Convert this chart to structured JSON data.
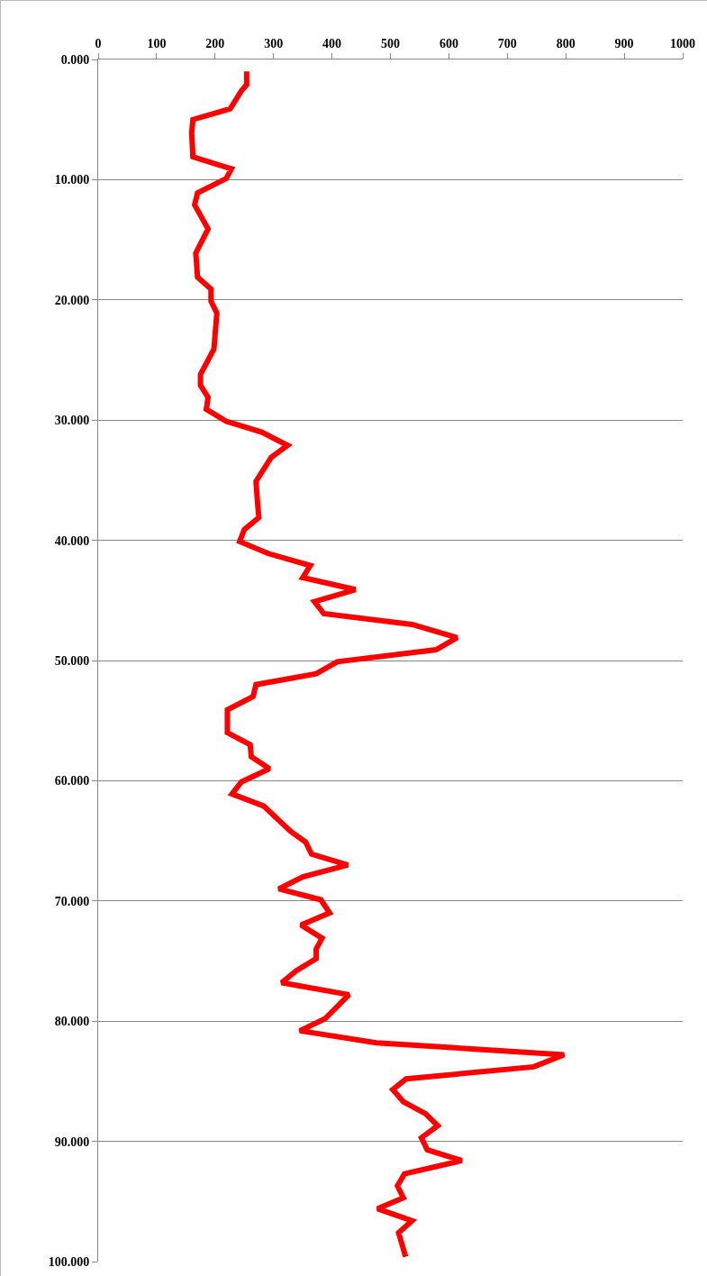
{
  "chart_data": {
    "type": "line",
    "color": "#ff0000",
    "marker": "none",
    "line_style": "solid",
    "grid": "y",
    "x": [
      254,
      254,
      245,
      226,
      162,
      160,
      162,
      228,
      219,
      170,
      165,
      188,
      167,
      170,
      193,
      193,
      203,
      198,
      175,
      175,
      188,
      185,
      219,
      280,
      324,
      296,
      270,
      273,
      275,
      250,
      242,
      291,
      363,
      350,
      440,
      370,
      386,
      537,
      614,
      578,
      409,
      373,
      270,
      265,
      221,
      221,
      260,
      262,
      293,
      245,
      229,
      283,
      329,
      355,
      365,
      427,
      350,
      309,
      381,
      396,
      347,
      383,
      373,
      373,
      339,
      314,
      429,
      388,
      345,
      476,
      797,
      745,
      527,
      504,
      522,
      560,
      581,
      553,
      563,
      622,
      524,
      512,
      522,
      478,
      537,
      514,
      526
    ],
    "values": [
      1.0,
      2.1,
      2.6,
      4.1,
      5.0,
      6.1,
      8.1,
      9.1,
      9.9,
      11.1,
      12.1,
      14.1,
      16.1,
      18.1,
      19.1,
      20.1,
      21.1,
      24.1,
      26.2,
      27.1,
      28.1,
      29.1,
      30.1,
      31.0,
      32.1,
      33.1,
      35.1,
      37.1,
      38.1,
      39.1,
      40.1,
      41.1,
      42.1,
      43.1,
      44.1,
      45.1,
      46.1,
      47.0,
      48.1,
      49.1,
      50.1,
      51.1,
      52.0,
      53.0,
      54.1,
      56.0,
      57.0,
      58.0,
      59.0,
      60.1,
      61.1,
      62.1,
      64.2,
      65.1,
      66.1,
      67.0,
      68.0,
      69.0,
      69.9,
      71.0,
      72.0,
      73.1,
      74.0,
      74.8,
      75.8,
      76.8,
      77.8,
      79.8,
      80.8,
      81.8,
      82.8,
      83.8,
      84.8,
      85.7,
      86.7,
      87.7,
      88.7,
      89.7,
      90.7,
      91.6,
      92.7,
      93.7,
      94.7,
      95.6,
      96.6,
      97.6,
      99.6
    ],
    "xlim": [
      0,
      1000
    ],
    "xticks": [
      0,
      100,
      200,
      300,
      400,
      500,
      600,
      700,
      800,
      900,
      1000
    ],
    "ylim": [
      100,
      0
    ],
    "yticks": [
      {
        "value": 0,
        "label": "0.000"
      },
      {
        "value": 10,
        "label": "10.000"
      },
      {
        "value": 20,
        "label": "20.000"
      },
      {
        "value": 30,
        "label": "30.000"
      },
      {
        "value": 40,
        "label": "40.000"
      },
      {
        "value": 50,
        "label": "50.000"
      },
      {
        "value": 60,
        "label": "60.000"
      },
      {
        "value": 70,
        "label": "70.000"
      },
      {
        "value": 80,
        "label": "80.000"
      },
      {
        "value": 90,
        "label": "90.000"
      },
      {
        "value": 100,
        "label": "100.000"
      }
    ]
  }
}
